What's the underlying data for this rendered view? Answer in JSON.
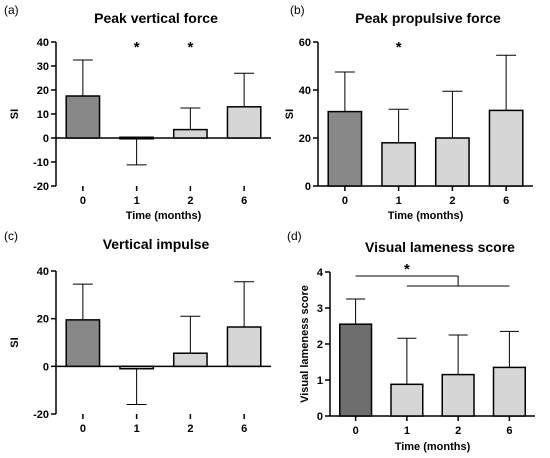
{
  "colors": {
    "bar_dark": "#888888",
    "bar_darker": "#6e6e6e",
    "bar_light": "#d6d6d6",
    "stroke": "#000000"
  },
  "chart_data": [
    {
      "panel": "(a)",
      "type": "bar",
      "title": "Peak vertical force",
      "xlabel": "Time (months)",
      "ylabel": "SI",
      "categories": [
        "0",
        "1",
        "2",
        "6"
      ],
      "values": [
        17.5,
        0.3,
        3.5,
        13
      ],
      "errors": [
        15,
        11.5,
        9,
        14
      ],
      "error_direction": [
        "up",
        "down",
        "up",
        "up"
      ],
      "ylim": [
        -20,
        40
      ],
      "yticks": [
        "-20",
        "-10",
        "0",
        "10",
        "20",
        "30",
        "40"
      ],
      "significance": [
        "1",
        "2"
      ],
      "star": "*",
      "dark_bars": [
        0
      ]
    },
    {
      "panel": "(b)",
      "type": "bar",
      "title": "Peak propulsive force",
      "xlabel": "Time (months)",
      "ylabel": "SI",
      "categories": [
        "0",
        "1",
        "2",
        "6"
      ],
      "values": [
        31,
        18,
        20,
        31.5
      ],
      "errors": [
        16.5,
        14,
        19.5,
        23
      ],
      "error_direction": [
        "up",
        "up",
        "up",
        "up"
      ],
      "ylim": [
        0,
        60
      ],
      "yticks": [
        "0",
        "20",
        "40",
        "60"
      ],
      "significance": [
        "1"
      ],
      "star": "*",
      "dark_bars": [
        0
      ]
    },
    {
      "panel": "(c)",
      "type": "bar",
      "title": "Vertical impulse",
      "xlabel": "",
      "ylabel": "SI",
      "categories": [
        "0",
        "1",
        "2",
        "6"
      ],
      "values": [
        19.5,
        -1,
        5.5,
        16.5
      ],
      "errors": [
        15,
        15,
        15.5,
        19
      ],
      "error_direction": [
        "up",
        "down",
        "up",
        "up"
      ],
      "ylim": [
        -20,
        40
      ],
      "yticks": [
        "-20",
        "0",
        "20",
        "40"
      ],
      "significance": [],
      "star": "*",
      "dark_bars": [
        0
      ]
    },
    {
      "panel": "(d)",
      "type": "bar",
      "title": "Visual lameness score",
      "xlabel": "Time (months)",
      "ylabel": "Visual lameness score",
      "categories": [
        "0",
        "1",
        "2",
        "6"
      ],
      "values": [
        2.55,
        0.88,
        1.15,
        1.35
      ],
      "errors": [
        0.7,
        1.28,
        1.1,
        1.0
      ],
      "error_direction": [
        "up",
        "up",
        "up",
        "up"
      ],
      "ylim": [
        0,
        4
      ],
      "yticks": [
        "0",
        "1",
        "2",
        "3",
        "4"
      ],
      "significance": [],
      "bracket": {
        "from": "0",
        "to_group": [
          "1",
          "2",
          "6"
        ],
        "star": "*"
      },
      "star": "*",
      "dark_bars": [
        0
      ]
    }
  ]
}
